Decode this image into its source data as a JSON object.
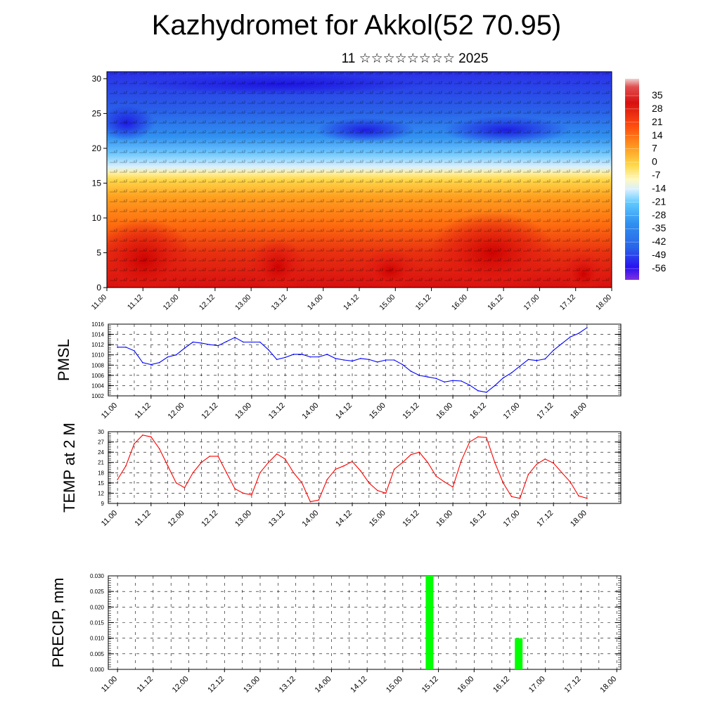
{
  "title": "Kazhydromet for Akkol(52 70.95)",
  "subtitle": "11 ☆☆☆☆☆☆☆☆ 2025",
  "time_ticks": [
    "11.00",
    "11.12",
    "12.00",
    "12.12",
    "13.00",
    "13.12",
    "14.00",
    "14.12",
    "15.00",
    "15.12",
    "16.00",
    "16.12",
    "17.00",
    "17.12",
    "18.00"
  ],
  "chart_data": [
    {
      "type": "heatmap",
      "name": "cross-section",
      "x": "time_ticks",
      "ylim": [
        0,
        31
      ],
      "yticks": [
        0,
        5,
        10,
        15,
        20,
        25,
        30
      ],
      "colorbar": {
        "labels": [
          "35",
          "28",
          "21",
          "14",
          "7",
          "0",
          "-7",
          "-14",
          "-21",
          "-28",
          "-35",
          "-42",
          "-49",
          "-56"
        ],
        "colors": {
          "hot": "#d81010",
          "warm": "#ff8c1a",
          "mild": "#ffd84a",
          "neutral": "#fff8c0",
          "cool": "#5ec8ff",
          "cold": "#2a64e8",
          "coldest": "#2a10f0",
          "min": "#8030e0"
        }
      }
    },
    {
      "type": "line",
      "ylabel": "PMSL",
      "ylim": [
        1002,
        1016
      ],
      "yticks": [
        1002,
        1004,
        1006,
        1008,
        1010,
        1012,
        1014,
        1016
      ],
      "color": "#0000ff",
      "x": [
        0,
        3,
        6,
        9,
        12,
        15,
        18,
        21,
        24,
        27,
        30,
        33,
        36,
        39,
        42,
        45,
        48,
        51,
        54,
        57,
        60,
        63,
        66,
        69,
        72,
        75,
        78,
        81,
        84,
        87,
        90,
        93,
        96,
        99,
        102,
        105,
        108,
        111,
        114,
        117,
        120,
        123,
        126,
        129,
        132,
        135,
        138,
        141,
        144,
        147,
        150,
        153,
        156,
        159,
        162,
        165,
        168
      ],
      "values": [
        1011.5,
        1011.5,
        1010.8,
        1008.5,
        1008.1,
        1008.5,
        1009.6,
        1010.0,
        1011.3,
        1012.5,
        1012.3,
        1012.0,
        1011.8,
        1012.6,
        1013.4,
        1012.5,
        1012.5,
        1012.5,
        1011.0,
        1009.1,
        1009.5,
        1010.1,
        1010.1,
        1009.6,
        1009.6,
        1010.1,
        1009.3,
        1009.0,
        1008.8,
        1009.3,
        1009.1,
        1008.6,
        1009.0,
        1009.0,
        1008.1,
        1006.8,
        1006.0,
        1005.7,
        1005.4,
        1004.7,
        1005.0,
        1004.9,
        1004.1,
        1003.0,
        1002.7,
        1004.0,
        1005.5,
        1006.5,
        1007.8,
        1009.1,
        1008.9,
        1009.2,
        1010.9,
        1012.2,
        1013.5,
        1014.2,
        1015.3
      ]
    },
    {
      "type": "line",
      "ylabel": "TEMP at 2 M",
      "ylim": [
        9,
        30
      ],
      "yticks": [
        9,
        12,
        15,
        18,
        21,
        24,
        27,
        30
      ],
      "color": "#ff0000",
      "x": [
        0,
        3,
        6,
        9,
        12,
        15,
        18,
        21,
        24,
        27,
        30,
        33,
        36,
        39,
        42,
        45,
        48,
        51,
        54,
        57,
        60,
        63,
        66,
        69,
        72,
        75,
        78,
        81,
        84,
        87,
        90,
        93,
        96,
        99,
        102,
        105,
        108,
        111,
        114,
        117,
        120,
        123,
        126,
        129,
        132,
        135,
        138,
        141,
        144,
        147,
        150,
        153,
        156,
        159,
        162,
        165,
        168
      ],
      "values": [
        16,
        20,
        26.5,
        29,
        28.5,
        25,
        20,
        15,
        13.6,
        18,
        21,
        22.8,
        22.8,
        18,
        13.3,
        12,
        11.5,
        18,
        21,
        23.5,
        22,
        18,
        15,
        9.5,
        10,
        16,
        19,
        20,
        21.3,
        18.5,
        15,
        12.8,
        12,
        19,
        21,
        23.3,
        24,
        21,
        17,
        15.3,
        13.8,
        21.5,
        27,
        28.5,
        28.3,
        21,
        15,
        11,
        10.5,
        17.5,
        20.5,
        22,
        20.8,
        18,
        15.3,
        11.2,
        10.5
      ]
    },
    {
      "type": "bar",
      "ylabel": "PRECIP, mm",
      "ylim": [
        0,
        0.03
      ],
      "yticks": [
        "0.000",
        "0.005",
        "0.010",
        "0.015",
        "0.020",
        "0.025",
        "0.030"
      ],
      "color": "#00ff00",
      "x": [
        105,
        135
      ],
      "values": [
        0.03,
        0.01
      ]
    }
  ]
}
